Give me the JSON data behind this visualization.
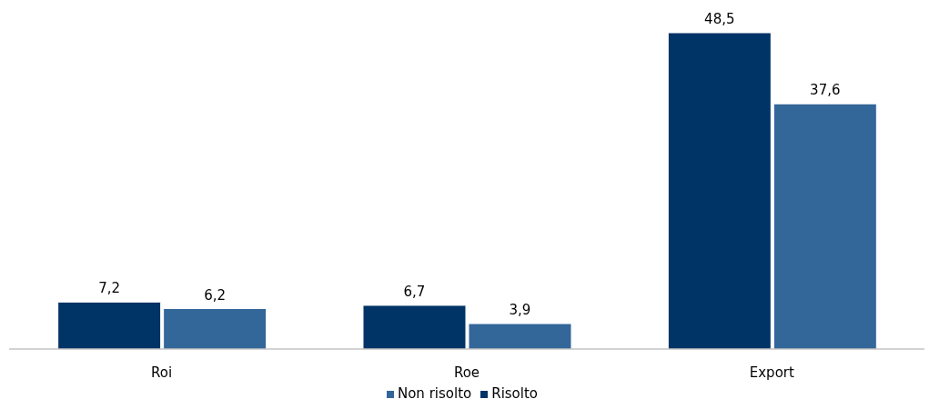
{
  "chart_data": {
    "type": "bar",
    "categories": [
      "Roi",
      "Roe",
      "Export"
    ],
    "series": [
      {
        "name": "Risolto",
        "color": "#003366",
        "values": [
          7.2,
          6.7,
          48.5
        ],
        "value_labels": [
          "7,2",
          "6,7",
          "48,5"
        ]
      },
      {
        "name": "Non risolto",
        "color": "#336699",
        "values": [
          6.2,
          3.9,
          37.6
        ],
        "value_labels": [
          "6,2",
          "3,9",
          "37,6"
        ]
      }
    ],
    "legend": "bottom",
    "grid": false
  }
}
